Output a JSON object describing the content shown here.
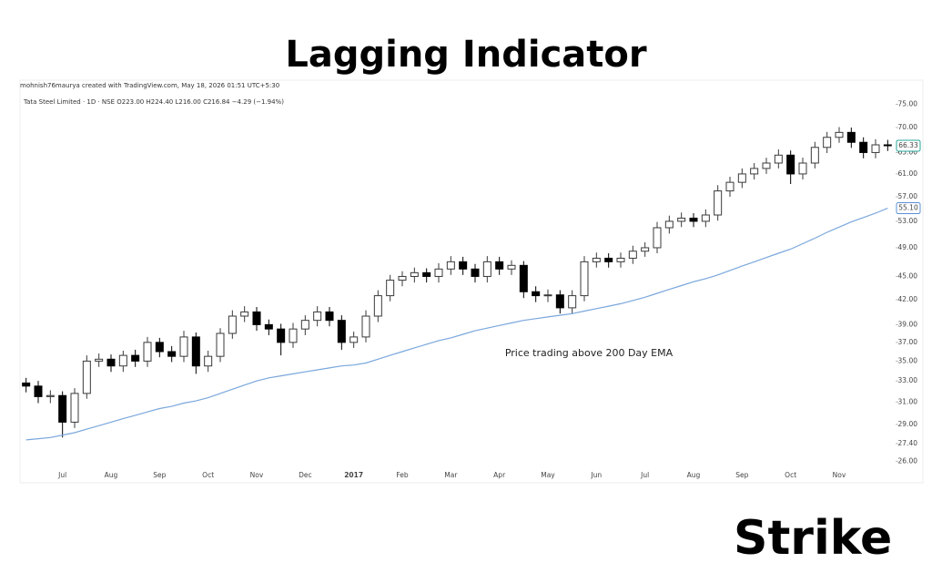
{
  "chart_data": {
    "type": "candlestick",
    "title": "Lagging Indicator",
    "credit": "mohnish76maurya created with TradingView.com, May 18, 2026 01:51 UTC+5:30",
    "subtitle": "Tata Steel Limited · 1D · NSE  O223.00 H224.40 L216.00 C216.84 −4.29 (−1.94%)",
    "annotation": "Price trading above 200 Day EMA",
    "log_scale": true,
    "up_color": "#3a3a3a",
    "down_color": "#000000",
    "categories": [
      null,
      null,
      null,
      "Jul",
      null,
      null,
      null,
      "Aug",
      null,
      null,
      null,
      "Sep",
      null,
      null,
      null,
      "Oct",
      null,
      null,
      null,
      "Nov",
      null,
      null,
      null,
      "Dec",
      null,
      null,
      null,
      "2017",
      null,
      null,
      null,
      "Feb",
      null,
      null,
      null,
      "Mar",
      null,
      null,
      null,
      "Apr",
      null,
      null,
      null,
      "May",
      null,
      null,
      null,
      "Jun",
      null,
      null,
      null,
      "Jul",
      null,
      null,
      null,
      "Aug",
      null,
      null,
      null,
      "Sep",
      null,
      null,
      null,
      "Oct",
      null,
      null,
      null,
      "Nov",
      null,
      null,
      null,
      null
    ],
    "open": [
      32.8,
      32.5,
      31.5,
      31.6,
      29.2,
      31.8,
      35,
      35.2,
      34.5,
      35.6,
      35,
      37,
      36,
      35.5,
      37.6,
      34.5,
      35.5,
      38,
      40,
      40.5,
      39,
      38.5,
      37,
      38.5,
      39.5,
      40.5,
      39.5,
      37,
      37.6,
      40,
      42.5,
      44.5,
      45,
      45.5,
      45,
      46,
      47,
      46,
      45,
      47,
      46,
      46.5,
      43,
      42.5,
      42.6,
      41,
      42.5,
      47,
      47.5,
      47,
      47.5,
      48.5,
      49,
      52,
      53,
      53.5,
      53,
      54,
      58,
      59.5,
      61,
      62,
      63,
      64.5,
      61,
      63,
      66,
      68,
      69,
      67,
      65,
      66.5
    ],
    "high": [
      33.3,
      33,
      32.1,
      32,
      32.3,
      35.6,
      35.8,
      35.7,
      36.1,
      36.2,
      37.6,
      37.5,
      36.6,
      38.3,
      38.1,
      36.1,
      38.6,
      40.7,
      41.2,
      41.1,
      39.6,
      39.1,
      39.2,
      40.1,
      41.2,
      41.1,
      40.1,
      38.2,
      40.7,
      43.2,
      45.2,
      45.7,
      46.2,
      46.1,
      46.8,
      47.8,
      47.7,
      46.7,
      47.8,
      47.7,
      47.2,
      47.1,
      43.7,
      43.3,
      43.2,
      43.2,
      47.8,
      48.3,
      48.2,
      48.3,
      49.3,
      49.8,
      52.9,
      53.9,
      54.4,
      54.3,
      54.9,
      59,
      60.5,
      62,
      63,
      64,
      65.6,
      65.4,
      64,
      67.1,
      69.1,
      70.1,
      70,
      68,
      67.6,
      67.5
    ],
    "low": [
      31.9,
      30.9,
      30.9,
      27.9,
      28.7,
      31.3,
      34.4,
      33.9,
      33.9,
      34.4,
      34.4,
      35.4,
      34.9,
      34.9,
      33.7,
      33.9,
      34.9,
      37.4,
      39.3,
      38.3,
      37.8,
      35.6,
      36.4,
      37.8,
      38.8,
      38.8,
      36.2,
      36.4,
      37,
      39.3,
      41.8,
      43.7,
      44.2,
      44.2,
      44.2,
      45.2,
      45.2,
      44.2,
      44.2,
      45.2,
      45.2,
      42.2,
      41.7,
      41.7,
      40.3,
      40.3,
      41.8,
      46.2,
      46.2,
      46.2,
      46.7,
      47.7,
      48.2,
      51.1,
      52.1,
      52.1,
      52.1,
      53.1,
      57,
      58.5,
      60,
      61,
      62,
      59.2,
      60,
      62,
      64.9,
      66.9,
      65.9,
      63.9,
      63.9,
      65.3
    ],
    "close": [
      32.5,
      31.5,
      31.6,
      29.2,
      31.8,
      35,
      35.2,
      34.5,
      35.6,
      35,
      37,
      36,
      35.5,
      37.6,
      34.5,
      35.5,
      38,
      40,
      40.5,
      39,
      38.5,
      37,
      38.5,
      39.5,
      40.5,
      39.5,
      37,
      37.6,
      40,
      42.5,
      44.5,
      45,
      45.5,
      45,
      46,
      47,
      46,
      45,
      47,
      46,
      46.5,
      43,
      42.5,
      42.6,
      41,
      42.5,
      47,
      47.5,
      47,
      47.5,
      48.5,
      49,
      52,
      53,
      53.5,
      53,
      54,
      58,
      59.5,
      61,
      62,
      63,
      64.5,
      61,
      63,
      66,
      68,
      69,
      67,
      65,
      66.5,
      66.33
    ],
    "ema": {
      "color": "#7aa7dc",
      "values": [
        27.7,
        27.8,
        27.9,
        28.1,
        28.3,
        28.6,
        28.9,
        29.2,
        29.5,
        29.8,
        30.1,
        30.4,
        30.6,
        30.9,
        31.1,
        31.4,
        31.8,
        32.2,
        32.6,
        33,
        33.3,
        33.5,
        33.7,
        33.9,
        34.1,
        34.3,
        34.5,
        34.6,
        34.8,
        35.2,
        35.6,
        36,
        36.4,
        36.8,
        37.2,
        37.5,
        37.9,
        38.3,
        38.6,
        38.9,
        39.2,
        39.5,
        39.7,
        39.9,
        40.1,
        40.3,
        40.6,
        40.9,
        41.2,
        41.5,
        41.9,
        42.3,
        42.8,
        43.3,
        43.8,
        44.3,
        44.7,
        45.2,
        45.8,
        46.4,
        47,
        47.6,
        48.2,
        48.8,
        49.6,
        50.4,
        51.3,
        52.1,
        52.9,
        53.6,
        54.3,
        55.1
      ]
    },
    "price_labels": [
      {
        "value": 66.33,
        "color": "#26a69a"
      },
      {
        "value": {
          "value": 55.1,
          "label": "55.10"
        },
        "color": "#5b8fd8"
      }
    ],
    "ylim": [
      25.4,
      78
    ],
    "yticks": [
      {
        "value": 26,
        "label": "26.00"
      },
      {
        "value": 27.4,
        "label": "27.40"
      },
      {
        "value": 29,
        "label": "29.00"
      },
      {
        "value": 31,
        "label": "31.00"
      },
      {
        "value": 33,
        "label": "33.00"
      },
      {
        "value": 35,
        "label": "35.00"
      },
      {
        "value": 37,
        "label": "37.00"
      },
      {
        "value": 39,
        "label": "39.00"
      },
      {
        "value": 42,
        "label": "42.00"
      },
      {
        "value": 45,
        "label": "45.00"
      },
      {
        "value": 49,
        "label": "49.00"
      },
      {
        "value": 53,
        "label": "53.00"
      },
      {
        "value": 57,
        "label": "57.00"
      },
      {
        "value": 61,
        "label": "61.00"
      },
      {
        "value": 65,
        "label": "65.00"
      },
      {
        "value": 70,
        "label": "70.00"
      },
      {
        "value": 75,
        "label": "75.00"
      }
    ],
    "grid": false
  },
  "logo": "Strike"
}
